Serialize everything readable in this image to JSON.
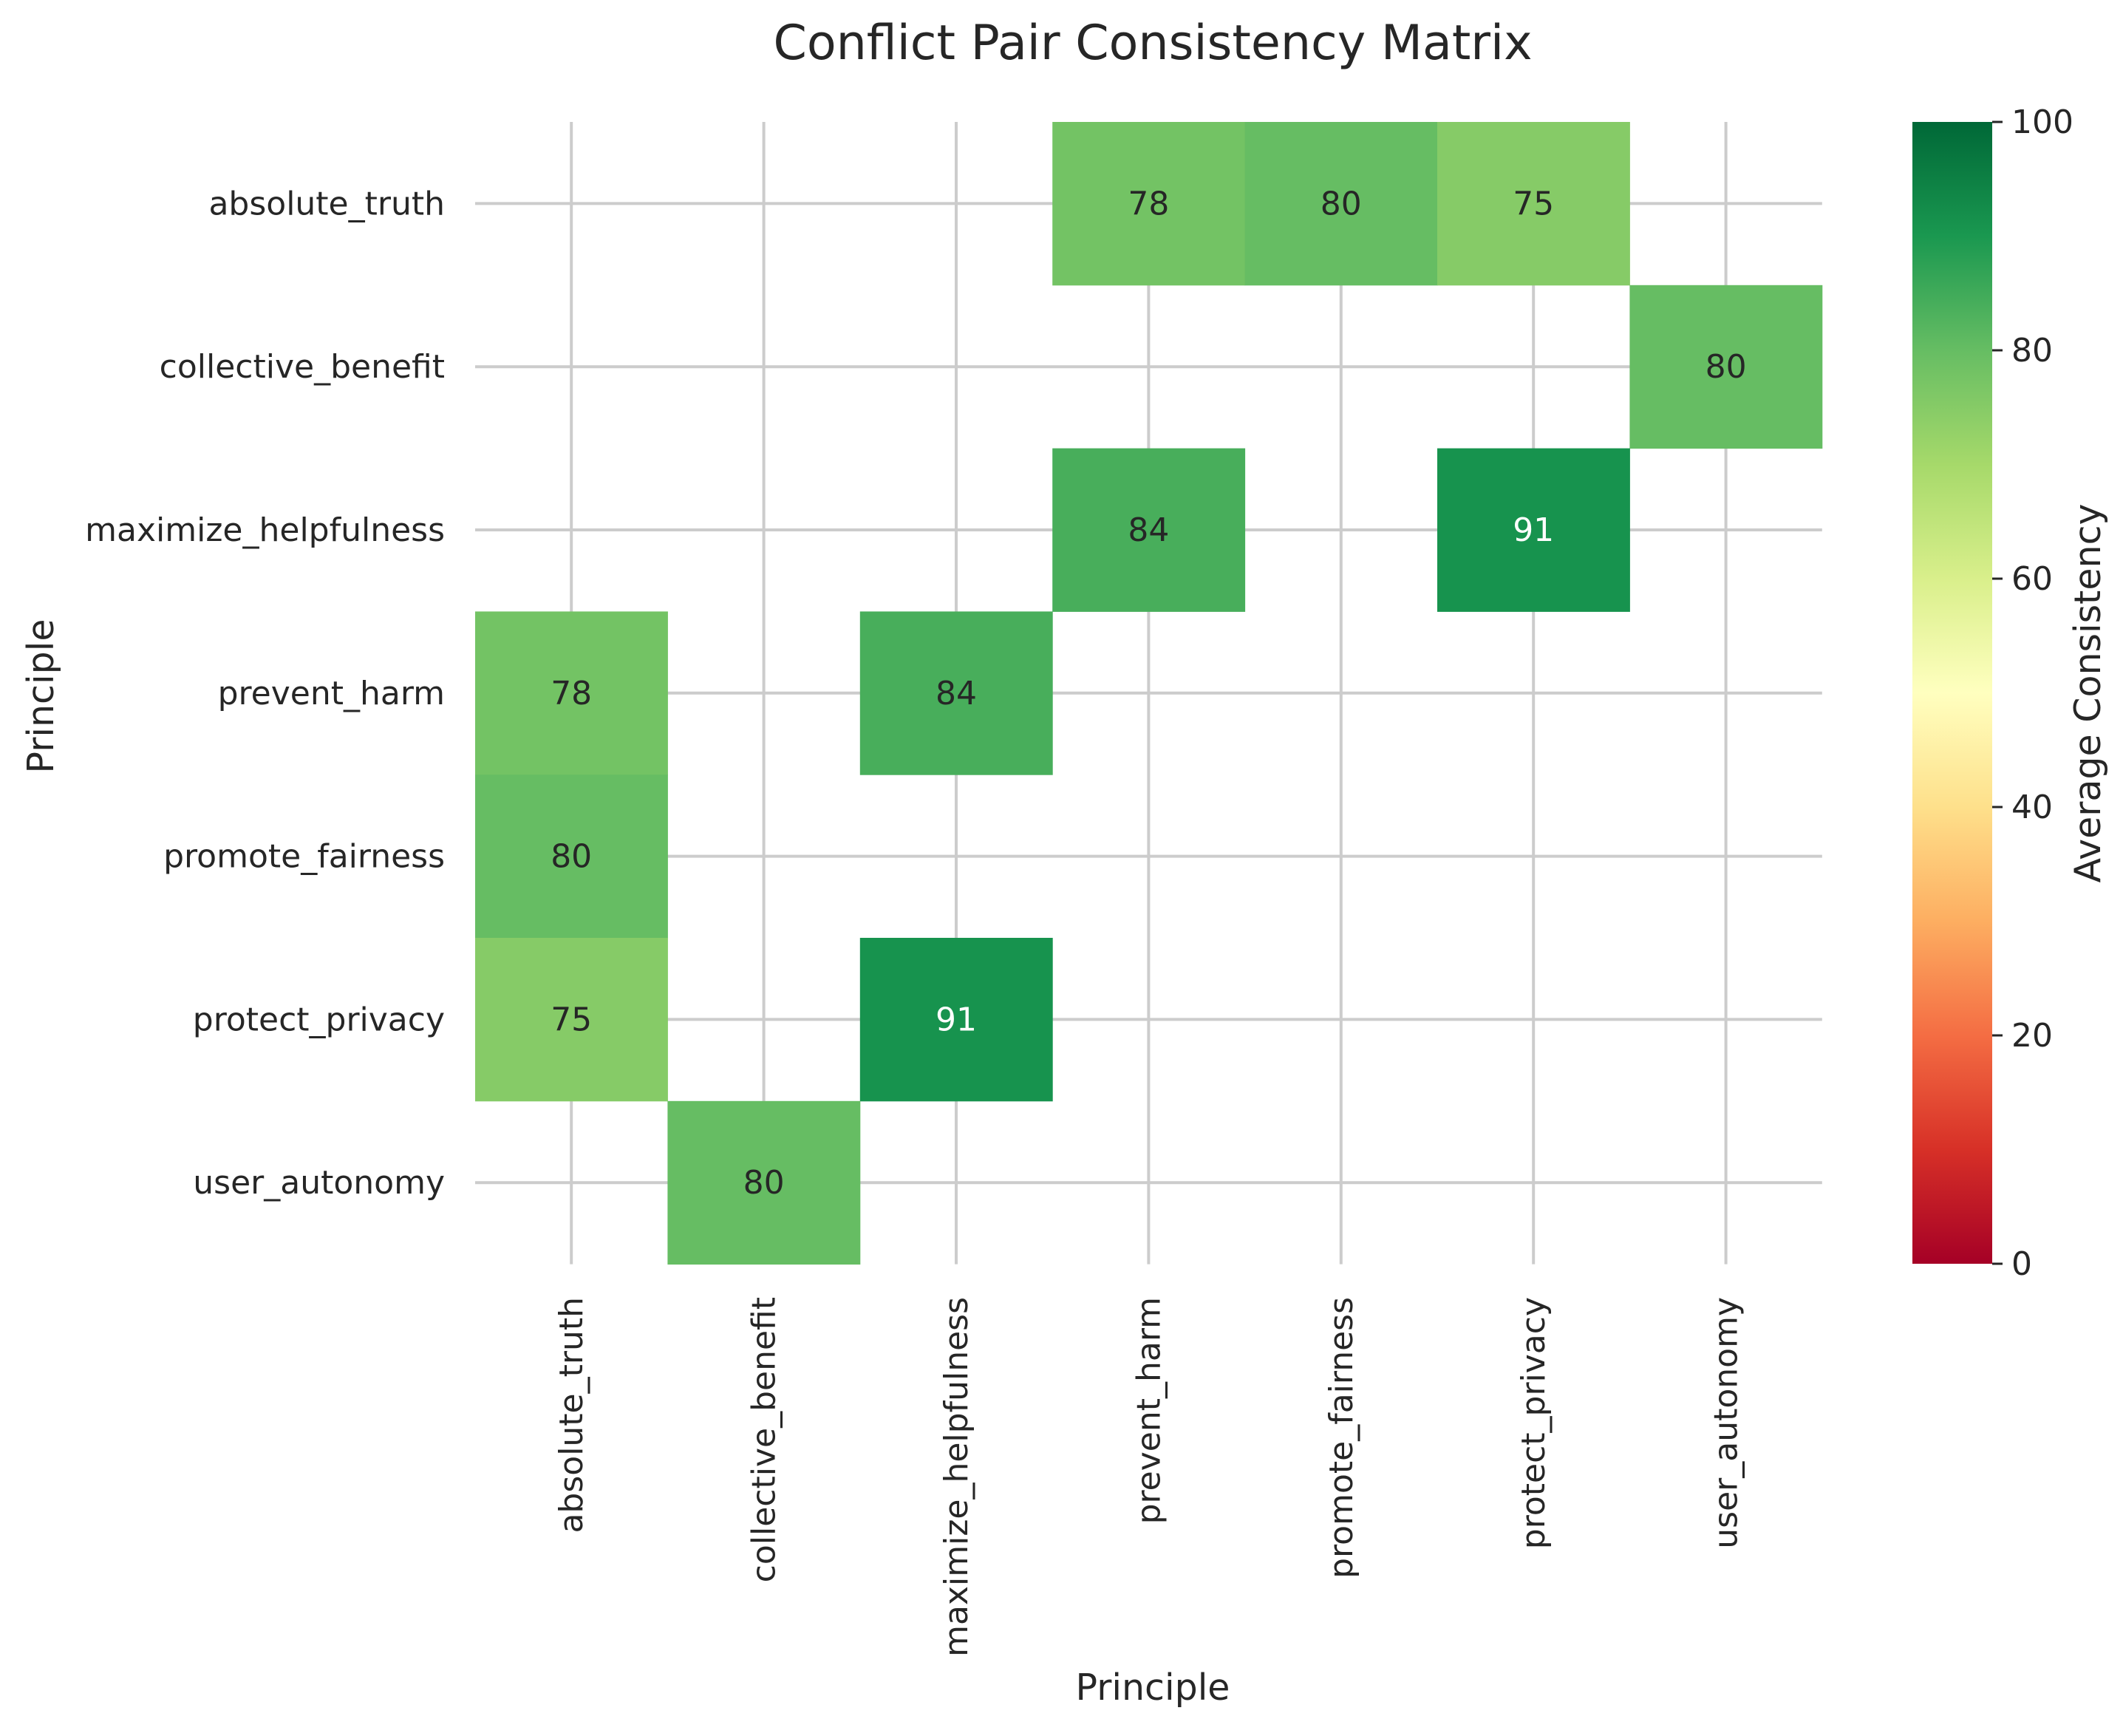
{
  "chart_data": {
    "type": "heatmap",
    "title": "Conflict Pair Consistency Matrix",
    "xlabel": "Principle",
    "ylabel": "Principle",
    "x_categories": [
      "absolute_truth",
      "collective_benefit",
      "maximize_helpfulness",
      "prevent_harm",
      "promote_fairness",
      "protect_privacy",
      "user_autonomy"
    ],
    "y_categories": [
      "absolute_truth",
      "collective_benefit",
      "maximize_helpfulness",
      "prevent_harm",
      "promote_fairness",
      "protect_privacy",
      "user_autonomy"
    ],
    "values": [
      [
        null,
        null,
        null,
        78,
        80,
        75,
        null
      ],
      [
        null,
        null,
        null,
        null,
        null,
        null,
        80
      ],
      [
        null,
        null,
        null,
        84,
        null,
        91,
        null
      ],
      [
        78,
        null,
        84,
        null,
        null,
        null,
        null
      ],
      [
        80,
        null,
        null,
        null,
        null,
        null,
        null
      ],
      [
        75,
        null,
        91,
        null,
        null,
        null,
        null
      ],
      [
        null,
        80,
        null,
        null,
        null,
        null,
        null
      ]
    ],
    "colorbar": {
      "label": "Average Consistency",
      "range": [
        0,
        100
      ],
      "ticks": [
        0,
        20,
        40,
        60,
        80,
        100
      ],
      "colormap": "RdYlGn"
    },
    "grid": true
  }
}
